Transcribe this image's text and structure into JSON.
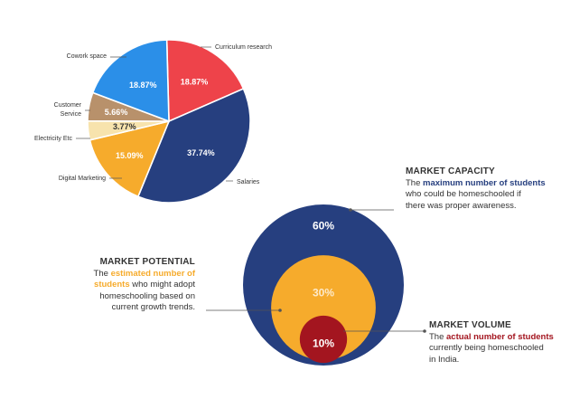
{
  "colors": {
    "salaries": "#263f7f",
    "curriculum": "#ee434a",
    "cowork": "#2b8fe8",
    "customer": "#b8916b",
    "electricity": "#f7e3ad",
    "digital": "#f6ab2c",
    "capacity": "#263f7f",
    "potential": "#f6ab2c",
    "volume": "#a3151f",
    "text": "#333333"
  },
  "chart_data": [
    {
      "type": "pie",
      "title": "",
      "slices": [
        {
          "key": "curriculum",
          "label": "Curriculum research",
          "value": 18.87,
          "value_label": "18.87%"
        },
        {
          "key": "salaries",
          "label": "Salaries",
          "value": 37.74,
          "value_label": "37.74%"
        },
        {
          "key": "digital",
          "label": "Digital Marketing",
          "value": 15.09,
          "value_label": "15.09%"
        },
        {
          "key": "electricity",
          "label": "Electricity Etc",
          "value": 3.77,
          "value_label": "3.77%"
        },
        {
          "key": "customer",
          "label": "Customer Service",
          "value": 5.66,
          "value_label": "5.66%"
        },
        {
          "key": "cowork",
          "label": "Cowork space",
          "value": 18.87,
          "value_label": "18.87%"
        }
      ]
    },
    {
      "type": "nested-circles",
      "circles": [
        {
          "key": "capacity",
          "value": 60,
          "value_label": "60%"
        },
        {
          "key": "potential",
          "value": 30,
          "value_label": "30%"
        },
        {
          "key": "volume",
          "value": 10,
          "value_label": "10%"
        }
      ]
    }
  ],
  "customer_label_lines": [
    "Customer",
    "Service"
  ],
  "market": {
    "capacity": {
      "heading": "MARKET CAPACITY",
      "intro": "The ",
      "highlight": "maximum number of students",
      "line2": "who could be homeschooled if",
      "line3": "there was proper awareness."
    },
    "potential": {
      "heading": "MARKET POTENTIAL",
      "intro": "The ",
      "highlight1": "estimated number of",
      "highlight2": "students",
      "rest2": " who might adopt",
      "line3": "homeschooling based on",
      "line4": "current growth trends."
    },
    "volume": {
      "heading": "MARKET VOLUME",
      "intro": "The ",
      "highlight": "actual number of students",
      "line2": "currently being homeschooled",
      "line3": "in India."
    }
  }
}
